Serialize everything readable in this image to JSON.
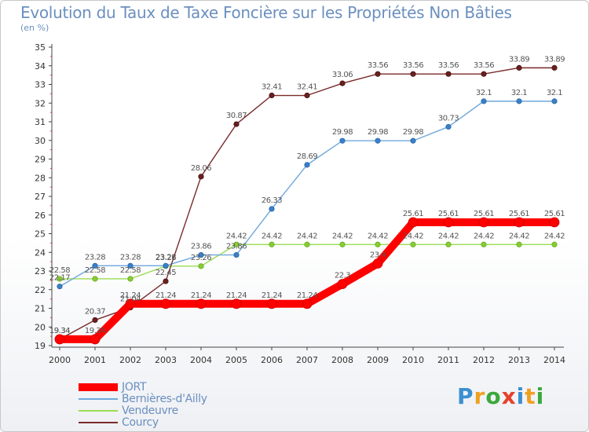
{
  "header": {
    "title": "Evolution du Taux de Taxe Foncière sur les Propriétés Non Bâties",
    "subtitle": "(en %)"
  },
  "logo": {
    "text": "Proxiti",
    "colors": [
      "#3a8fd0",
      "#f0a020",
      "#3aa83a",
      "#e8402a",
      "#3a8fd0",
      "#f0a020",
      "#3aa83a"
    ]
  },
  "chart_data": {
    "type": "line",
    "title": "Evolution du Taux de Taxe Foncière sur les Propriétés Non Bâties",
    "ylabel": "(en %)",
    "ylim": [
      19,
      35
    ],
    "yticks": [
      19,
      20,
      21,
      22,
      23,
      24,
      25,
      26,
      27,
      28,
      29,
      30,
      31,
      32,
      33,
      34,
      35
    ],
    "categories": [
      "2000",
      "2001",
      "2002",
      "2003",
      "2004",
      "2005",
      "2006",
      "2007",
      "2008",
      "2009",
      "2010",
      "2011",
      "2012",
      "2013",
      "2014"
    ],
    "series": [
      {
        "name": "JORT",
        "color": "#ff0000",
        "values": [
          19.34,
          19.34,
          21.24,
          21.24,
          21.24,
          21.24,
          21.24,
          21.24,
          22.3,
          23.4,
          25.61,
          25.61,
          25.61,
          25.61,
          25.61
        ],
        "labels": [
          "19.34",
          "19.34",
          "21.24",
          "21.24",
          "21.24",
          "21.24",
          "21.24",
          "21.24",
          "22.3",
          "23.4",
          "25.61",
          "25.61",
          "25.61",
          "25.61",
          "25.61"
        ]
      },
      {
        "name": "Bernières-d'Ailly",
        "color": "#6fa8dc",
        "values": [
          22.17,
          23.28,
          23.28,
          23.28,
          23.86,
          23.86,
          26.33,
          28.69,
          29.98,
          29.98,
          29.98,
          30.73,
          32.1,
          32.1,
          32.1
        ],
        "labels": [
          "22.17",
          "23.28",
          "23.28",
          "23.28",
          "23.86",
          "23.86",
          "26.33",
          "28.69",
          "29.98",
          "29.98",
          "29.98",
          "30.73",
          "32.1",
          "32.1",
          "32.1"
        ]
      },
      {
        "name": "Vendeuvre",
        "color": "#99dd55",
        "values": [
          22.58,
          22.58,
          22.58,
          23.26,
          23.26,
          24.42,
          24.42,
          24.42,
          24.42,
          24.42,
          24.42,
          24.42,
          24.42,
          24.42,
          24.42
        ],
        "labels": [
          "22.58",
          "22.58",
          "22.58",
          "23.26",
          "23.26",
          "24.42",
          "24.42",
          "24.42",
          "24.42",
          "24.42",
          "24.42",
          "24.42",
          "24.42",
          "24.42",
          "24.42"
        ]
      },
      {
        "name": "Courcy",
        "color": "#7a2a2a",
        "values": [
          19.34,
          20.37,
          21.04,
          22.45,
          28.06,
          30.87,
          32.41,
          32.41,
          33.06,
          33.56,
          33.56,
          33.56,
          33.56,
          33.89,
          33.89
        ],
        "labels": [
          "19.34",
          "20.37",
          "21.04",
          "22.45",
          "28.06",
          "30.87",
          "32.41",
          "32.41",
          "33.06",
          "33.56",
          "33.56",
          "33.56",
          "33.56",
          "33.89",
          "33.89"
        ]
      }
    ],
    "grid": false,
    "legend": "bottom-left"
  }
}
